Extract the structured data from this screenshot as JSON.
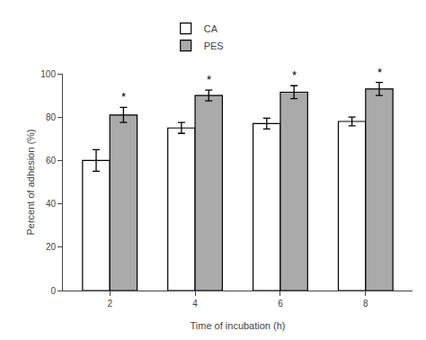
{
  "chart_data": {
    "type": "bar",
    "categories": [
      "2",
      "4",
      "6",
      "8"
    ],
    "series": [
      {
        "name": "CA",
        "color": "#ffffff",
        "values": [
          60,
          75,
          77,
          78
        ],
        "errors": [
          5,
          2.5,
          2.5,
          2
        ]
      },
      {
        "name": "PES",
        "color": "#aaaaaa",
        "values": [
          81,
          90,
          91.5,
          93
        ],
        "errors": [
          3.5,
          2.5,
          3,
          3
        ]
      }
    ],
    "annotations": [
      {
        "text": "*",
        "series": "PES",
        "category": "2"
      },
      {
        "text": "*",
        "series": "PES",
        "category": "4"
      },
      {
        "text": "*",
        "series": "PES",
        "category": "6"
      },
      {
        "text": "*",
        "series": "PES",
        "category": "8"
      }
    ],
    "xlabel": "Time of incubation (h)",
    "ylabel": "Percent of adhesion (%)",
    "ylim": [
      0,
      100
    ],
    "yticks": [
      0,
      20,
      40,
      60,
      80,
      100
    ],
    "grid": false,
    "legend": "top"
  }
}
